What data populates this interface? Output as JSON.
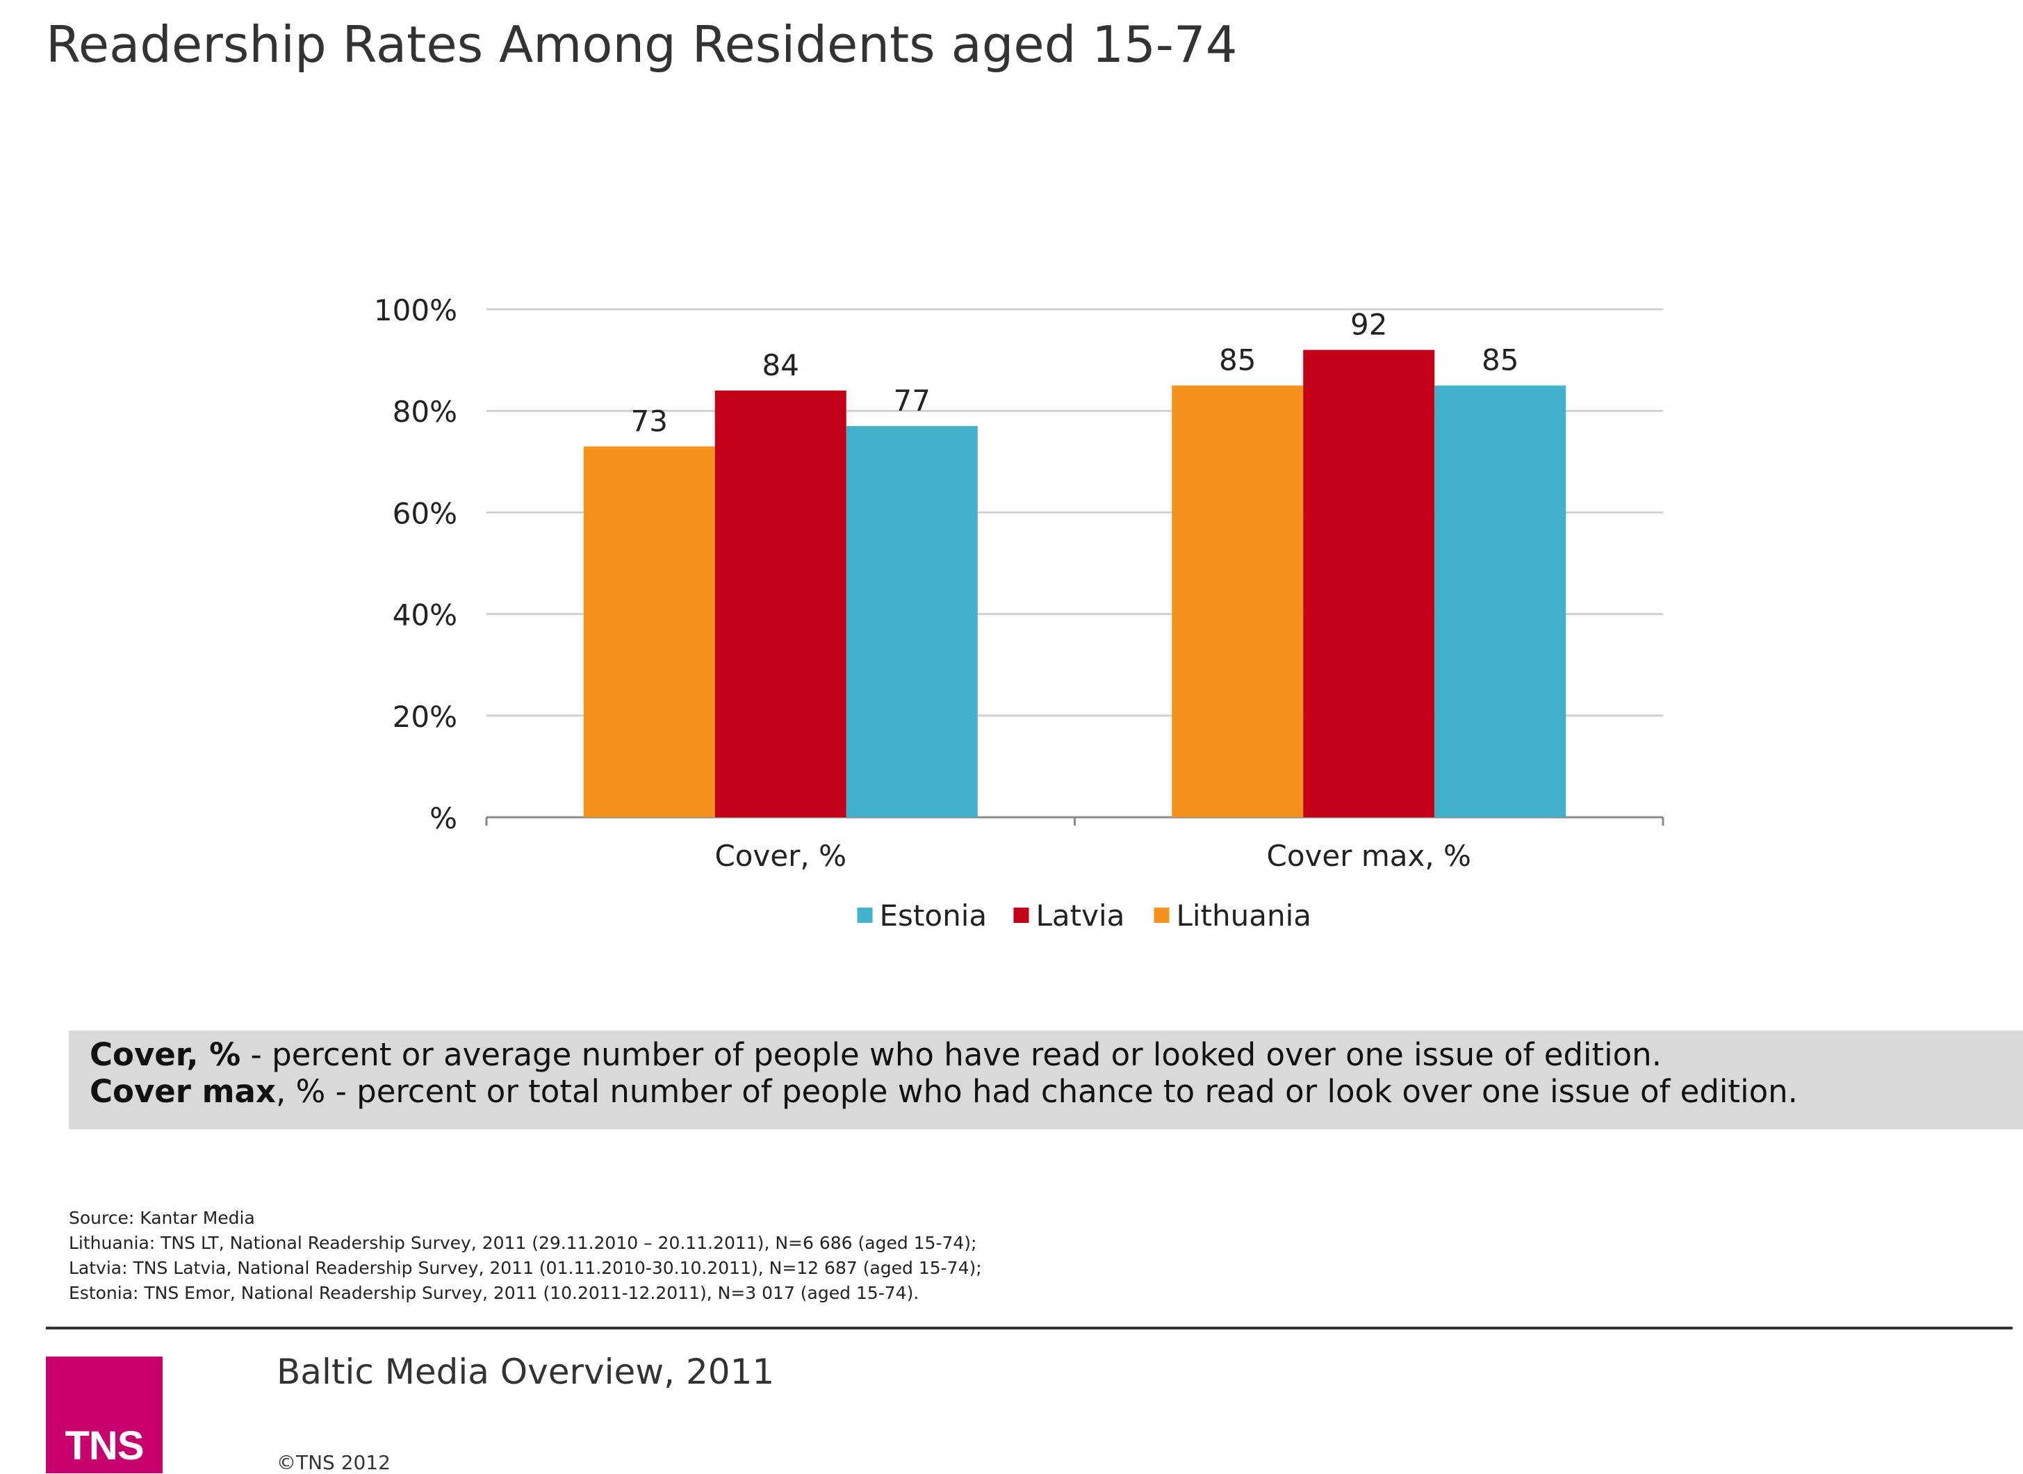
{
  "title": "Readership Rates Among Residents aged 15-74",
  "chart_data": {
    "type": "bar",
    "categories": [
      "Cover, %",
      "Cover max, %"
    ],
    "series": [
      {
        "name": "Lithuania",
        "values": [
          73,
          85
        ],
        "color": "#f5921e"
      },
      {
        "name": "Latvia",
        "values": [
          84,
          92
        ],
        "color": "#c40018"
      },
      {
        "name": "Estonia",
        "values": [
          77,
          85
        ],
        "color": "#42b2cc"
      }
    ],
    "ylim": [
      0,
      100
    ],
    "yticks": [
      0,
      20,
      40,
      60,
      80,
      100
    ],
    "ytick_labels": [
      "%",
      "20%",
      "40%",
      "60%",
      "80%",
      "100%"
    ],
    "grid": true,
    "legend": {
      "placement": "bottom",
      "order": [
        "Estonia",
        "Latvia",
        "Lithuania"
      ]
    }
  },
  "notes": {
    "line1_bold": "Cover, %",
    "line1_text": " - percent or average number of people who have read or looked over one issue of edition.",
    "line2_bold": "Cover max",
    "line2_text": ", % - percent or total number of people who had chance to read or look over one issue of edition."
  },
  "source": {
    "line1": "Source: Kantar Media",
    "line2": "Lithuania: TNS LT, National Readership Survey, 2011 (29.11.2010 – 20.11.2011), N=6 686 (aged 15-74);",
    "line3": "Latvia: TNS Latvia, National Readership Survey, 2011 (01.11.2010-30.10.2011), N=12 687 (aged 15-74);",
    "line4": "Estonia: TNS Emor, National Readership Survey, 2011 (10.2011-12.2011), N=3 017 (aged 15-74)."
  },
  "footer": {
    "logo_text": "TNS",
    "logo_color": "#c8006e",
    "title": "Baltic Media Overview, 2011",
    "copyright": "©TNS 2012"
  }
}
